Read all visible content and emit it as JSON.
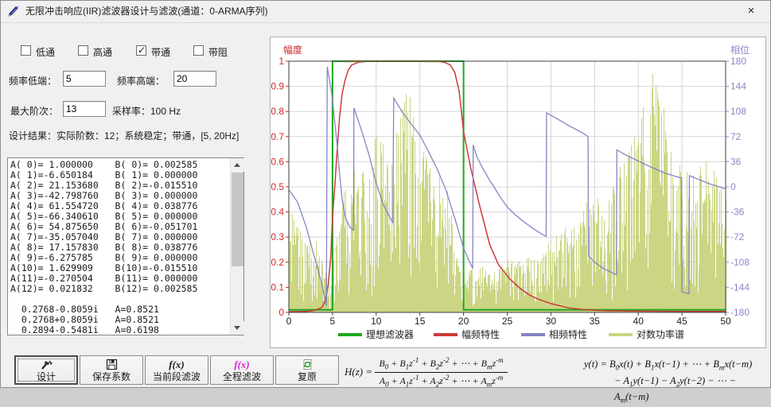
{
  "window": {
    "title": "无限冲击响应(IIR)滤波器设计与滤波(通道：0-ARMA序列)",
    "close_glyph": "×"
  },
  "filter_types": [
    {
      "id": "lowpass",
      "label": "低通",
      "checked": false
    },
    {
      "id": "highpass",
      "label": "高通",
      "checked": false
    },
    {
      "id": "bandpass",
      "label": "带通",
      "checked": true
    },
    {
      "id": "bandstop",
      "label": "带阻",
      "checked": false
    }
  ],
  "fields": {
    "freq_low_label": "频率低端：",
    "freq_low_value": "5",
    "freq_high_label": "频率高端：",
    "freq_high_value": "20",
    "max_order_label": "最大阶次：",
    "max_order_value": "13",
    "sample_rate_label": "采样率：100 Hz",
    "design_result": "设计结果：实际阶数：12；系统稳定；带通，[5, 20Hz]"
  },
  "coefficient_list": [
    "A( 0)= 1.000000    B( 0)= 0.002585",
    "A( 1)=-6.650184    B( 1)= 0.000000",
    "A( 2)= 21.153680   B( 2)=-0.015510",
    "A( 3)=-42.798760   B( 3)= 0.000000",
    "A( 4)= 61.554720   B( 4)= 0.038776",
    "A( 5)=-66.340610   B( 5)= 0.000000",
    "A( 6)= 54.875650   B( 6)=-0.051701",
    "A( 7)=-35.057040   B( 7)= 0.000000",
    "A( 8)= 17.157830   B( 8)= 0.038776",
    "A( 9)=-6.275785    B( 9)= 0.000000",
    "A(10)= 1.629909    B(10)=-0.015510",
    "A(11)=-0.270504    B(11)= 0.000000",
    "A(12)= 0.021832    B(12)= 0.002585",
    "",
    "  0.2768-0.8059i   A=0.8521",
    "  0.2768+0.8059i   A=0.8521",
    "  0.2894-0.5481i   A=0.6198"
  ],
  "toolbar": [
    {
      "id": "design",
      "label": "设计",
      "icon": "hammer-icon",
      "focused": true
    },
    {
      "id": "save-coefficients",
      "label": "保存系数",
      "icon": "floppy-icon",
      "focused": false
    },
    {
      "id": "filter-current-segment",
      "label": "当前段滤波",
      "icon": "fx-icon",
      "icon_text": "f(x)",
      "icon_color": "#1a1a1a",
      "focused": false
    },
    {
      "id": "filter-all",
      "label": "全程滤波",
      "icon": "fx-icon",
      "icon_text": "f(x)",
      "icon_color": "#dd22dd",
      "focused": false
    },
    {
      "id": "restore",
      "label": "复原",
      "icon": "restore-icon",
      "focused": false
    }
  ],
  "formulas": {
    "hz_lhs": "H(z) =",
    "hz_numerator": "B_0 + B_1z^-1 + B_2z^-2 + ⋯ + B_mz^-m",
    "hz_denominator": "A_0 + A_1z^-1 + A_2z^-2 + ⋯ + A_mz^-m",
    "yt_line1": "y(t) =  B_0x(t) + B_1x(t−1) + ⋯ + B_mx(t−m)",
    "yt_line2": "− A_1y(t−1) − A_2y(t−2) − ⋯ − A_m(t−m)"
  },
  "chart_data": {
    "type": "line",
    "x_axis": {
      "min": 0,
      "max": 50,
      "tick_labels": [
        "0",
        "5",
        "10",
        "15",
        "20",
        "25",
        "30",
        "35",
        "40",
        "45",
        "50"
      ],
      "tick_step": 5
    },
    "y_left": {
      "label": "幅度",
      "color": "#cc2929",
      "min": 0,
      "max": 1,
      "tick_labels": [
        "1",
        "0.9",
        "0.8",
        "0.7",
        "0.6",
        "0.5",
        "0.4",
        "0.3",
        "0.2",
        "0.1",
        "0"
      ]
    },
    "y_right": {
      "label": "相位",
      "color": "#8888c8",
      "min": -180,
      "max": 180,
      "tick_labels": [
        "180",
        "144",
        "108",
        "72",
        "36",
        "0",
        "-36",
        "-72",
        "-108",
        "-144",
        "-180"
      ]
    },
    "grid": true,
    "legend_position": "bottom",
    "series": [
      {
        "name": "理想滤波器",
        "color": "#1fa81f",
        "axis": "left",
        "width": 2,
        "points": [
          [
            0,
            0.01
          ],
          [
            5,
            0.01
          ],
          [
            5,
            1
          ],
          [
            20,
            1
          ],
          [
            20,
            0.01
          ],
          [
            50,
            0.01
          ]
        ]
      },
      {
        "name": "幅频特性",
        "color": "#cc3a3a",
        "axis": "left",
        "width": 1.5,
        "points": [
          [
            0,
            0.003
          ],
          [
            2,
            0.004
          ],
          [
            3,
            0.008
          ],
          [
            3.8,
            0.02
          ],
          [
            4.2,
            0.05
          ],
          [
            4.5,
            0.11
          ],
          [
            4.8,
            0.22
          ],
          [
            5,
            0.38
          ],
          [
            5.3,
            0.52
          ],
          [
            5.5,
            0.63
          ],
          [
            5.8,
            0.775
          ],
          [
            6.1,
            0.87
          ],
          [
            6.4,
            0.92
          ],
          [
            6.8,
            0.965
          ],
          [
            7.2,
            0.985
          ],
          [
            8,
            0.996
          ],
          [
            9,
            1
          ],
          [
            17,
            1
          ],
          [
            17.8,
            0.996
          ],
          [
            18.5,
            0.985
          ],
          [
            19,
            0.955
          ],
          [
            19.5,
            0.88
          ],
          [
            20,
            0.72
          ],
          [
            20.8,
            0.578
          ],
          [
            21.8,
            0.43
          ],
          [
            23,
            0.27
          ],
          [
            24,
            0.19
          ],
          [
            25.3,
            0.133
          ],
          [
            26.5,
            0.095
          ],
          [
            27.5,
            0.07
          ],
          [
            28.6,
            0.052
          ],
          [
            30,
            0.035
          ],
          [
            32,
            0.018
          ],
          [
            34,
            0.01
          ],
          [
            36,
            0.007
          ],
          [
            40,
            0.005
          ],
          [
            45,
            0.004
          ],
          [
            50,
            0.004
          ]
        ]
      },
      {
        "name": "相频特性",
        "color": "#8585c5",
        "axis": "right",
        "width": 1.3,
        "points": [
          [
            0,
            -4
          ],
          [
            1,
            -22
          ],
          [
            2,
            -58
          ],
          [
            2.7,
            -90
          ],
          [
            3.3,
            -117
          ],
          [
            3.8,
            -140
          ],
          [
            4.3,
            -171
          ],
          [
            4.4,
            172
          ],
          [
            4.6,
            157
          ],
          [
            4.9,
            135
          ],
          [
            5.2,
            100
          ],
          [
            5.5,
            64
          ],
          [
            5.8,
            20
          ],
          [
            6.1,
            -18
          ],
          [
            6.5,
            -45
          ],
          [
            7,
            -58
          ],
          [
            7.4,
            -62
          ],
          [
            7.45,
            113
          ],
          [
            8.3,
            82
          ],
          [
            9.2,
            45
          ],
          [
            10,
            5
          ],
          [
            10.8,
            -25
          ],
          [
            11.9,
            -52
          ],
          [
            12,
            127
          ],
          [
            13,
            107
          ],
          [
            14,
            90
          ],
          [
            15,
            74
          ],
          [
            16,
            50
          ],
          [
            17,
            25
          ],
          [
            18,
            -5
          ],
          [
            19,
            -45
          ],
          [
            20,
            -88
          ],
          [
            20.6,
            -105
          ],
          [
            21.05,
            -117
          ],
          [
            21.1,
            60
          ],
          [
            21.5,
            44
          ],
          [
            22,
            31
          ],
          [
            22.5,
            20
          ],
          [
            23,
            9
          ],
          [
            23.5,
            0
          ],
          [
            24,
            -11
          ],
          [
            25,
            -29
          ],
          [
            26,
            -41
          ],
          [
            27,
            -51
          ],
          [
            28,
            -60
          ],
          [
            29,
            -68
          ],
          [
            29.45,
            -71
          ],
          [
            29.5,
            106
          ],
          [
            30.5,
            99
          ],
          [
            32,
            88
          ],
          [
            33.5,
            78
          ],
          [
            34.25,
            72
          ],
          [
            34.3,
            -99
          ],
          [
            35,
            -108
          ],
          [
            36,
            -117
          ],
          [
            37,
            -123
          ],
          [
            37.5,
            -126
          ],
          [
            37.55,
            53
          ],
          [
            38.5,
            46
          ],
          [
            40,
            37
          ],
          [
            41.5,
            28
          ],
          [
            43,
            20
          ],
          [
            44.5,
            14
          ],
          [
            44.95,
            13
          ],
          [
            45,
            -151
          ],
          [
            45.8,
            -153
          ],
          [
            45.85,
            16
          ],
          [
            47,
            10
          ],
          [
            48,
            5
          ],
          [
            49,
            1
          ],
          [
            50,
            -3
          ]
        ]
      },
      {
        "name": "对数功率谱",
        "color": "#cbd584",
        "axis": "left",
        "render": "spectrum-bars",
        "seed": 12345,
        "envelope": [
          [
            0,
            0.4
          ],
          [
            1,
            0.38
          ],
          [
            2,
            0.35
          ],
          [
            3,
            0.3
          ],
          [
            4,
            0.18
          ],
          [
            4.7,
            0.1
          ],
          [
            5,
            0.25
          ],
          [
            6,
            0.45
          ],
          [
            7,
            0.6
          ],
          [
            8,
            0.55
          ],
          [
            9,
            0.6
          ],
          [
            10,
            0.72
          ],
          [
            10.7,
            0.78
          ],
          [
            11,
            0.62
          ],
          [
            12,
            0.72
          ],
          [
            12.8,
            0.82
          ],
          [
            13.5,
            0.88
          ],
          [
            14,
            0.85
          ],
          [
            14.5,
            0.75
          ],
          [
            15,
            0.68
          ],
          [
            16,
            0.62
          ],
          [
            17,
            0.55
          ],
          [
            18,
            0.5
          ],
          [
            18.8,
            0.42
          ],
          [
            19.5,
            0.22
          ],
          [
            20,
            0.15
          ],
          [
            21,
            0.18
          ],
          [
            22,
            0.2
          ],
          [
            23,
            0.16
          ],
          [
            24,
            0.18
          ],
          [
            25,
            0.22
          ],
          [
            26,
            0.2
          ],
          [
            27,
            0.22
          ],
          [
            28,
            0.24
          ],
          [
            29,
            0.26
          ],
          [
            30,
            0.3
          ],
          [
            31,
            0.33
          ],
          [
            32,
            0.36
          ],
          [
            33,
            0.4
          ],
          [
            34,
            0.45
          ],
          [
            35,
            0.5
          ],
          [
            36,
            0.44
          ],
          [
            37,
            0.55
          ],
          [
            38,
            0.6
          ],
          [
            39,
            0.65
          ],
          [
            40,
            0.8
          ],
          [
            41,
            0.9
          ],
          [
            41.8,
            1
          ],
          [
            42.5,
            0.92
          ],
          [
            43,
            0.8
          ],
          [
            44,
            0.65
          ],
          [
            45,
            0.6
          ],
          [
            46,
            0.55
          ],
          [
            47,
            0.58
          ],
          [
            48,
            0.62
          ],
          [
            49,
            0.55
          ],
          [
            50,
            0.5
          ]
        ]
      }
    ],
    "top_overlap_marks": {
      "color": "#8f9140",
      "y_value": 1,
      "ranges": [
        [
          6.5,
          8.5
        ],
        [
          15.4,
          17.4
        ]
      ]
    }
  }
}
